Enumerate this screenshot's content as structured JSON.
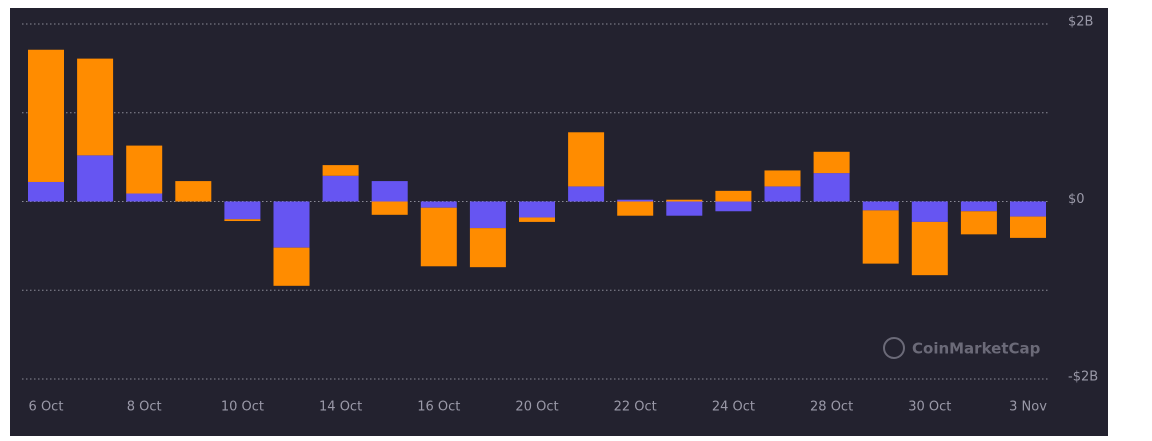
{
  "chart_data": {
    "type": "stacked-bar",
    "categories": [
      "6 Oct",
      null,
      "8 Oct",
      null,
      "10 Oct",
      null,
      "14 Oct",
      null,
      "16 Oct",
      null,
      "20 Oct",
      null,
      "22 Oct",
      null,
      "24 Oct",
      null,
      "28 Oct",
      null,
      "30 Oct",
      null,
      "3 Nov"
    ],
    "series": [
      {
        "color": "#6655f2",
        "values": [
          0.22,
          0.52,
          0.09,
          0,
          -0.2,
          -0.52,
          0.29,
          0.23,
          -0.07,
          -0.3,
          -0.18,
          0.17,
          0.02,
          -0.16,
          -0.11,
          0.17,
          0.32,
          -0.1,
          -0.23,
          -0.11,
          -0.17
        ]
      },
      {
        "color": "#ff8c00",
        "values": [
          1.49,
          1.09,
          0.54,
          0.23,
          -0.02,
          -0.43,
          0.12,
          -0.15,
          -0.66,
          -0.44,
          -0.05,
          0.61,
          -0.16,
          0.02,
          0.12,
          0.18,
          0.24,
          -0.6,
          -0.6,
          -0.26,
          -0.24
        ]
      }
    ],
    "ylim": [
      -2,
      2
    ],
    "yticks": [
      {
        "value": 2,
        "label": "$2B"
      },
      {
        "value": 0,
        "label": "$0"
      },
      {
        "value": -2,
        "label": "-$2B"
      }
    ],
    "grid_lines": [
      2,
      1,
      0,
      -1,
      -2
    ],
    "watermark": "CoinMarketCap"
  }
}
